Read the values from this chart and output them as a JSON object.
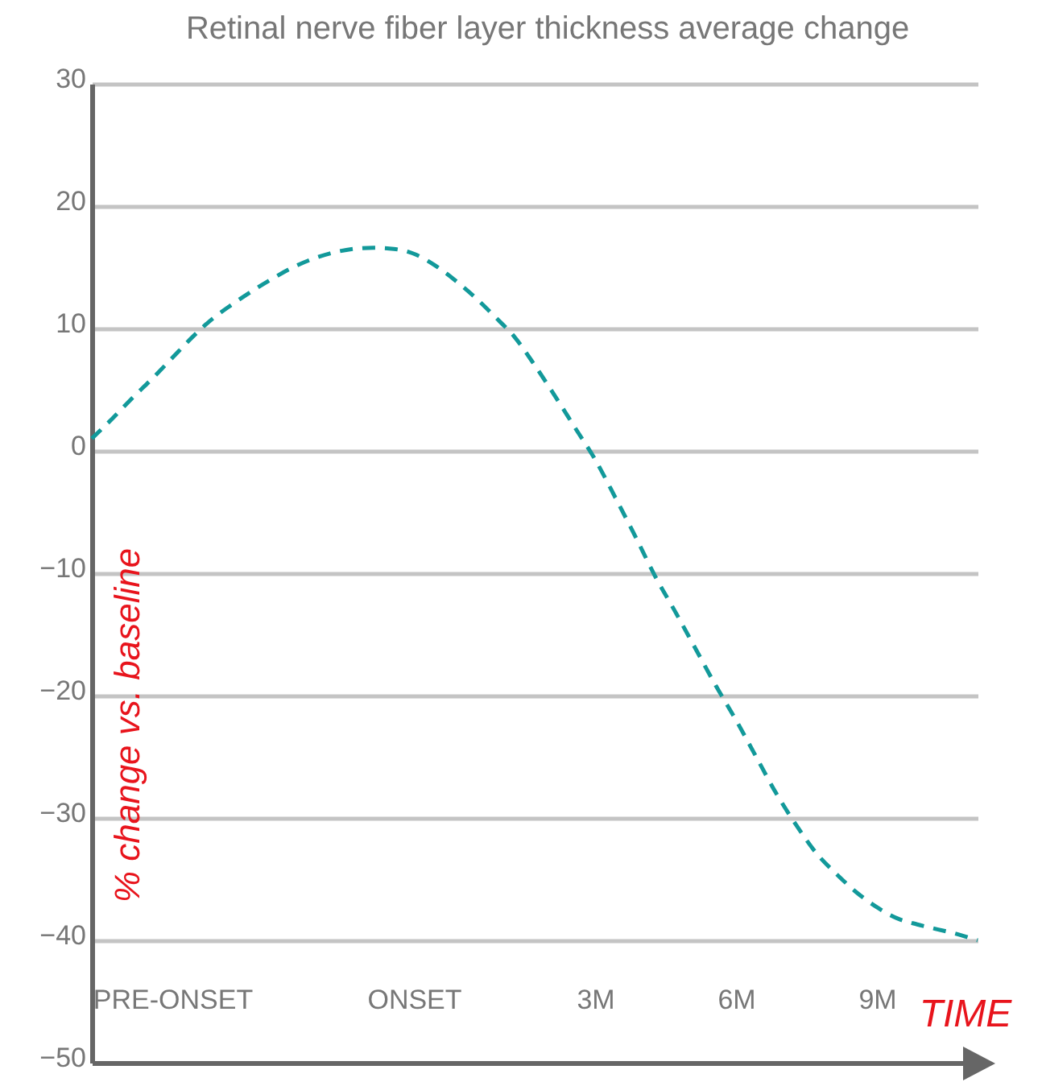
{
  "chart_data": {
    "type": "line",
    "title": "Retinal nerve fiber layer thickness average change",
    "xlabel": "TIME",
    "ylabel": "% change vs. baseline",
    "categories": [
      null,
      null,
      null,
      null,
      "PRE-ONSET",
      null,
      null,
      null,
      null,
      null,
      null,
      null,
      null,
      null,
      null,
      null,
      "ONSET",
      null,
      null,
      null,
      null,
      null,
      null,
      null,
      null,
      "3M",
      null,
      null,
      null,
      null,
      null,
      null,
      "6M",
      null,
      null,
      null,
      null,
      null,
      null,
      "9M",
      null,
      null,
      null,
      null,
      null
    ],
    "series": [
      {
        "color": "#12999a",
        "values": [
          1.0,
          2.6,
          4.3,
          5.9,
          7.6,
          9.3,
          10.8,
          12.0,
          13.1,
          14.1,
          15.0,
          15.7,
          16.2,
          16.5,
          16.6,
          16.5,
          16.1,
          15.2,
          14.0,
          12.6,
          11.0,
          9.3,
          7.0,
          4.5,
          1.9,
          -0.7,
          -3.8,
          -7.0,
          -10.3,
          -13.2,
          -16.2,
          -19.2,
          -22.0,
          -25.0,
          -28.0,
          -30.6,
          -32.9,
          -34.6,
          -36.1,
          -37.3,
          -38.2,
          -38.7,
          -39.1,
          -39.5,
          -40.0
        ]
      }
    ],
    "ylim": [
      -50,
      30
    ],
    "yticks": [
      -50,
      -40,
      -30,
      -20,
      -10,
      0,
      10,
      20,
      30
    ],
    "grid": "y",
    "line_style": "dashed"
  }
}
